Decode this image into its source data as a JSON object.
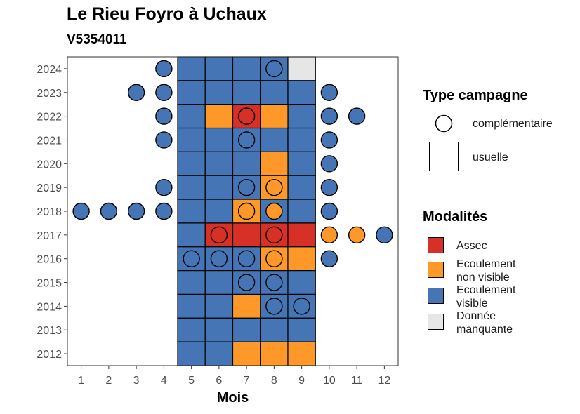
{
  "title": "Le Rieu Foyro à Uchaux",
  "subtitle": "V5354011",
  "chart_data": {
    "type": "heatmap",
    "xlabel": "Mois",
    "ylabel": "",
    "x_ticks": [
      1,
      2,
      3,
      4,
      5,
      6,
      7,
      8,
      9,
      10,
      11,
      12
    ],
    "y_ticks": [
      2012,
      2013,
      2014,
      2015,
      2016,
      2017,
      2018,
      2019,
      2020,
      2021,
      2022,
      2023,
      2024
    ],
    "xlim": [
      0.5,
      12.5
    ],
    "ylim": [
      2011.5,
      2024.5
    ],
    "grid": false,
    "legend_position": "right",
    "colors": {
      "Assec": "#d73027",
      "Ecoulement non visible": "#fe9929",
      "Ecoulement visible": "#4575b4",
      "Donnée manquante": "#e6e6e6"
    },
    "usuelle": [
      {
        "year": 2024,
        "months": [
          [
            "Ecoulement visible",
            5,
            6,
            7,
            8
          ],
          [
            "Donnée manquante",
            9
          ]
        ]
      },
      {
        "year": 2023,
        "months": [
          [
            "Ecoulement visible",
            5,
            6,
            7,
            8,
            9
          ]
        ]
      },
      {
        "year": 2022,
        "months": [
          [
            "Ecoulement visible",
            5,
            9
          ],
          [
            "Ecoulement non visible",
            6,
            8
          ],
          [
            "Assec",
            7
          ]
        ]
      },
      {
        "year": 2021,
        "months": [
          [
            "Ecoulement visible",
            5,
            6,
            7,
            8,
            9
          ]
        ]
      },
      {
        "year": 2020,
        "months": [
          [
            "Ecoulement visible",
            5,
            6,
            7,
            9
          ],
          [
            "Ecoulement non visible",
            8
          ]
        ]
      },
      {
        "year": 2019,
        "months": [
          [
            "Ecoulement visible",
            5,
            6,
            7,
            9
          ],
          [
            "Ecoulement non visible",
            8
          ]
        ]
      },
      {
        "year": 2018,
        "months": [
          [
            "Ecoulement visible",
            5,
            6,
            8,
            9
          ],
          [
            "Ecoulement non visible",
            7
          ]
        ]
      },
      {
        "year": 2017,
        "months": [
          [
            "Ecoulement visible",
            5
          ],
          [
            "Assec",
            6,
            7,
            8,
            9
          ]
        ]
      },
      {
        "year": 2016,
        "months": [
          [
            "Ecoulement visible",
            5,
            6,
            7
          ],
          [
            "Ecoulement non visible",
            8,
            9
          ]
        ]
      },
      {
        "year": 2015,
        "months": [
          [
            "Ecoulement visible",
            5,
            6,
            7,
            8,
            9
          ]
        ]
      },
      {
        "year": 2014,
        "months": [
          [
            "Ecoulement visible",
            5,
            6,
            8,
            9
          ],
          [
            "Ecoulement non visible",
            7
          ]
        ]
      },
      {
        "year": 2013,
        "months": [
          [
            "Ecoulement visible",
            5,
            6,
            7,
            8,
            9
          ]
        ]
      },
      {
        "year": 2012,
        "months": [
          [
            "Ecoulement visible",
            5,
            6
          ],
          [
            "Ecoulement non visible",
            7,
            8,
            9
          ]
        ]
      }
    ],
    "complementaire": [
      {
        "year": 2024,
        "months": [
          [
            "Ecoulement visible",
            4,
            8
          ]
        ]
      },
      {
        "year": 2023,
        "months": [
          [
            "Ecoulement visible",
            3,
            4,
            10
          ]
        ]
      },
      {
        "year": 2022,
        "months": [
          [
            "Ecoulement visible",
            4,
            10,
            11
          ],
          [
            "Assec",
            7
          ]
        ]
      },
      {
        "year": 2021,
        "months": [
          [
            "Ecoulement visible",
            4,
            7,
            10
          ]
        ]
      },
      {
        "year": 2020,
        "months": [
          [
            "Ecoulement visible",
            10
          ]
        ]
      },
      {
        "year": 2019,
        "months": [
          [
            "Ecoulement visible",
            4,
            7,
            10
          ],
          [
            "Ecoulement non visible",
            8
          ]
        ]
      },
      {
        "year": 2018,
        "months": [
          [
            "Ecoulement visible",
            1,
            2,
            3,
            4,
            10
          ],
          [
            "Ecoulement non visible",
            7,
            8
          ]
        ]
      },
      {
        "year": 2017,
        "months": [
          [
            "Assec",
            6,
            8
          ],
          [
            "Ecoulement non visible",
            10,
            11
          ],
          [
            "Ecoulement visible",
            12
          ]
        ]
      },
      {
        "year": 2016,
        "months": [
          [
            "Ecoulement visible",
            5,
            6,
            7,
            10
          ],
          [
            "Ecoulement non visible",
            8
          ]
        ]
      },
      {
        "year": 2015,
        "months": [
          [
            "Ecoulement visible",
            7,
            8
          ]
        ]
      },
      {
        "year": 2014,
        "months": [
          [
            "Ecoulement visible",
            8,
            9
          ]
        ]
      }
    ]
  },
  "legend": {
    "type_title": "Type campagne",
    "type_items": [
      {
        "label": "complémentaire",
        "shape": "circle"
      },
      {
        "label": "usuelle",
        "shape": "square"
      }
    ],
    "modalites_title": "Modalités",
    "modalites_items": [
      {
        "label_line1": "Assec",
        "label_line2": "",
        "color": "#d73027"
      },
      {
        "label_line1": "Ecoulement",
        "label_line2": "non visible",
        "color": "#fe9929"
      },
      {
        "label_line1": "Ecoulement",
        "label_line2": "visible",
        "color": "#4575b4"
      },
      {
        "label_line1": "Donnée",
        "label_line2": "manquante",
        "color": "#e6e6e6"
      }
    ]
  }
}
